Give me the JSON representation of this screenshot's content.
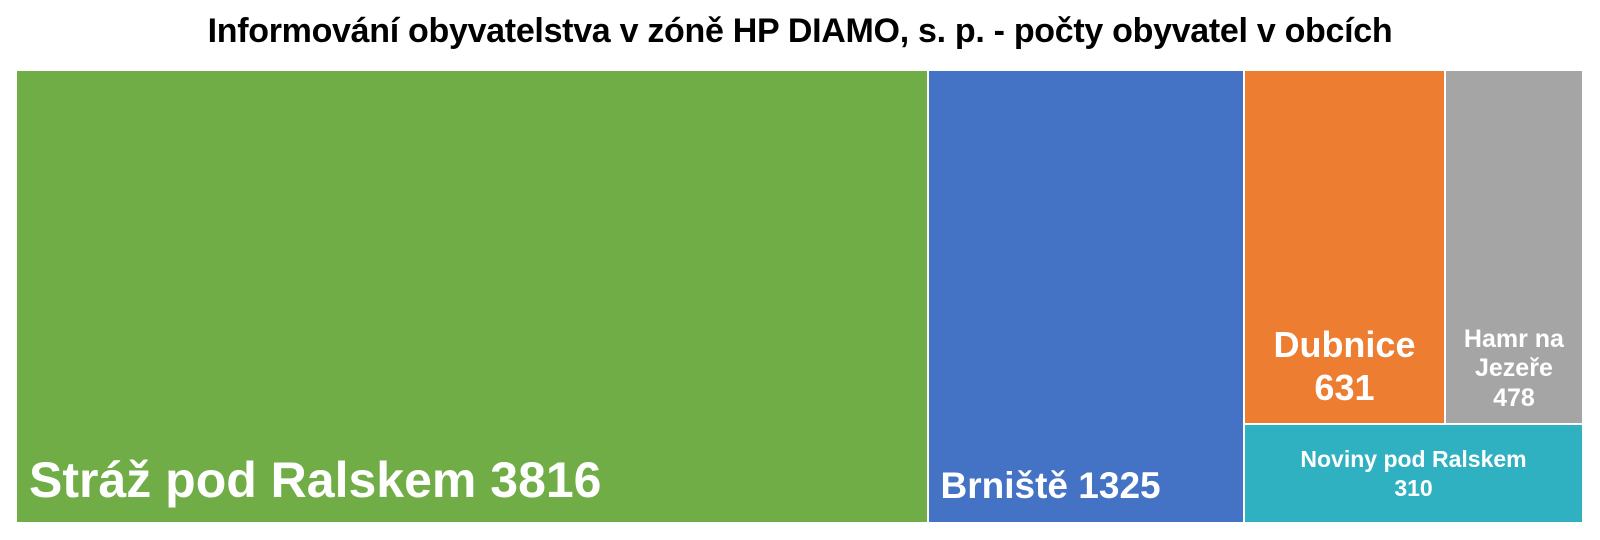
{
  "chart_data": {
    "type": "treemap",
    "title": "Informování obyvatelstva v zóně HP DIAMO, s. p. - počty obyvatel v obcích",
    "items": [
      {
        "name": "Stráž pod Ralskem",
        "value": 3816,
        "label": "Stráž pod Ralskem 3816",
        "color": "#70AD47"
      },
      {
        "name": "Brniště",
        "value": 1325,
        "label": "Brniště 1325",
        "color": "#4472C4"
      },
      {
        "name": "Dubnice",
        "value": 631,
        "label": "Dubnice\n631",
        "color": "#ED7D31"
      },
      {
        "name": "Hamr na Jezeře",
        "value": 478,
        "label": "Hamr na\nJezeře\n478",
        "color": "#A5A5A5"
      },
      {
        "name": "Noviny pod Ralskem",
        "value": 310,
        "label": "Noviny pod Ralskem\n310",
        "color": "#2FB1C1"
      }
    ]
  }
}
